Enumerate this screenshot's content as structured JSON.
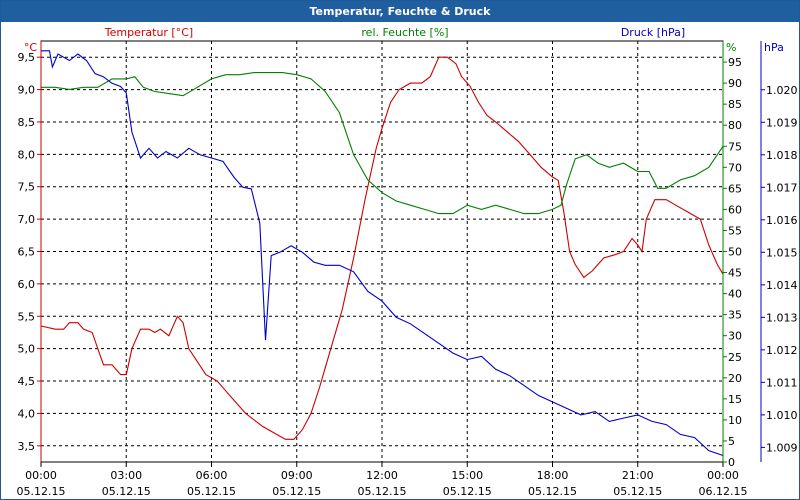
{
  "window": {
    "title": "Temperatur, Feuchte & Druck"
  },
  "chart_data": {
    "type": "line",
    "title": "Temperatur, Feuchte & Druck",
    "grid": true,
    "x": {
      "tick_times": [
        "00:00",
        "03:00",
        "06:00",
        "09:00",
        "12:00",
        "15:00",
        "18:00",
        "21:00",
        "00:00"
      ],
      "tick_dates": [
        "05.12.15",
        "05.12.15",
        "05.12.15",
        "05.12.15",
        "05.12.15",
        "05.12.15",
        "05.12.15",
        "05.12.15",
        "06.12.15"
      ],
      "range_hours": [
        0,
        24
      ]
    },
    "axes": {
      "temp": {
        "label": "Temperatur [°C]",
        "unit": "°C",
        "range": [
          3.25,
          9.75
        ],
        "ticks": [
          "3,5",
          "4,0",
          "4,5",
          "5,0",
          "5,5",
          "6,0",
          "6,5",
          "7,0",
          "7,5",
          "8,0",
          "8,5",
          "9,0",
          "9,5"
        ],
        "color": "#cc0000"
      },
      "hum": {
        "label": "rel. Feuchte [%]",
        "unit": "%",
        "range": [
          0,
          100
        ],
        "ticks": [
          "0",
          "5",
          "10",
          "15",
          "20",
          "25",
          "30",
          "35",
          "40",
          "45",
          "50",
          "55",
          "60",
          "65",
          "70",
          "75",
          "80",
          "85",
          "90",
          "95"
        ],
        "color": "#008000"
      },
      "press": {
        "label": "Druck [hPa]",
        "unit": "hPa",
        "range": [
          1008.55,
          1021.5
        ],
        "ticks": [
          "1.009",
          "1.010",
          "1.011",
          "1.012",
          "1.013",
          "1.014",
          "1.015",
          "1.016",
          "1.017",
          "1.018",
          "1.019",
          "1.020"
        ],
        "color": "#0000cc"
      }
    },
    "series": [
      {
        "name": "Temperatur [°C]",
        "axis": "temp",
        "color": "#cc0000",
        "points": [
          [
            0,
            5.35
          ],
          [
            0.5,
            5.3
          ],
          [
            0.8,
            5.3
          ],
          [
            1,
            5.4
          ],
          [
            1.3,
            5.4
          ],
          [
            1.5,
            5.3
          ],
          [
            1.8,
            5.25
          ],
          [
            2,
            5.0
          ],
          [
            2.2,
            4.75
          ],
          [
            2.5,
            4.75
          ],
          [
            2.8,
            4.6
          ],
          [
            3,
            4.6
          ],
          [
            3.2,
            5.0
          ],
          [
            3.5,
            5.3
          ],
          [
            3.8,
            5.3
          ],
          [
            4,
            5.25
          ],
          [
            4.2,
            5.3
          ],
          [
            4.5,
            5.2
          ],
          [
            4.8,
            5.5
          ],
          [
            5,
            5.4
          ],
          [
            5.2,
            5.0
          ],
          [
            5.5,
            4.8
          ],
          [
            5.8,
            4.6
          ],
          [
            6.2,
            4.5
          ],
          [
            6.5,
            4.35
          ],
          [
            6.8,
            4.2
          ],
          [
            7.2,
            4.0
          ],
          [
            7.5,
            3.9
          ],
          [
            7.8,
            3.8
          ],
          [
            8.2,
            3.7
          ],
          [
            8.6,
            3.6
          ],
          [
            8.9,
            3.6
          ],
          [
            9.2,
            3.75
          ],
          [
            9.5,
            4.0
          ],
          [
            9.8,
            4.4
          ],
          [
            10.2,
            5.0
          ],
          [
            10.6,
            5.6
          ],
          [
            11,
            6.4
          ],
          [
            11.4,
            7.3
          ],
          [
            11.8,
            8.1
          ],
          [
            12,
            8.4
          ],
          [
            12.3,
            8.8
          ],
          [
            12.6,
            9.0
          ],
          [
            13,
            9.1
          ],
          [
            13.4,
            9.1
          ],
          [
            13.7,
            9.2
          ],
          [
            14,
            9.5
          ],
          [
            14.3,
            9.5
          ],
          [
            14.6,
            9.4
          ],
          [
            14.8,
            9.2
          ],
          [
            15.1,
            9.05
          ],
          [
            15.4,
            8.8
          ],
          [
            15.7,
            8.6
          ],
          [
            16,
            8.5
          ],
          [
            16.4,
            8.35
          ],
          [
            16.8,
            8.2
          ],
          [
            17.2,
            8.0
          ],
          [
            17.6,
            7.8
          ],
          [
            18,
            7.65
          ],
          [
            18.2,
            7.6
          ],
          [
            18.4,
            7.1
          ],
          [
            18.6,
            6.5
          ],
          [
            18.8,
            6.3
          ],
          [
            19.1,
            6.1
          ],
          [
            19.4,
            6.2
          ],
          [
            19.8,
            6.4
          ],
          [
            20.2,
            6.45
          ],
          [
            20.5,
            6.5
          ],
          [
            20.8,
            6.7
          ],
          [
            21,
            6.6
          ],
          [
            21.15,
            6.5
          ],
          [
            21.3,
            7.0
          ],
          [
            21.6,
            7.3
          ],
          [
            22,
            7.3
          ],
          [
            22.4,
            7.2
          ],
          [
            22.8,
            7.1
          ],
          [
            23.2,
            7.0
          ],
          [
            23.5,
            6.6
          ],
          [
            23.8,
            6.3
          ],
          [
            24,
            6.15
          ]
        ]
      },
      {
        "name": "rel. Feuchte [%]",
        "axis": "hum",
        "color": "#008000",
        "points": [
          [
            0,
            89
          ],
          [
            0.5,
            89
          ],
          [
            1,
            88.5
          ],
          [
            1.5,
            89
          ],
          [
            2,
            89
          ],
          [
            2.5,
            91
          ],
          [
            3,
            91
          ],
          [
            3.3,
            91.5
          ],
          [
            3.6,
            89
          ],
          [
            4,
            88
          ],
          [
            4.5,
            87.5
          ],
          [
            5,
            87
          ],
          [
            5.5,
            89
          ],
          [
            6,
            91
          ],
          [
            6.5,
            92
          ],
          [
            7,
            92
          ],
          [
            7.5,
            92.5
          ],
          [
            8,
            92.5
          ],
          [
            8.5,
            92.5
          ],
          [
            9,
            92
          ],
          [
            9.5,
            91
          ],
          [
            10,
            88
          ],
          [
            10.5,
            83
          ],
          [
            11,
            73
          ],
          [
            11.5,
            67
          ],
          [
            12,
            64
          ],
          [
            12.5,
            62
          ],
          [
            13,
            61
          ],
          [
            13.5,
            60
          ],
          [
            14,
            59
          ],
          [
            14.5,
            59
          ],
          [
            15,
            61
          ],
          [
            15.5,
            60
          ],
          [
            16,
            61
          ],
          [
            16.5,
            60
          ],
          [
            17,
            59
          ],
          [
            17.5,
            59
          ],
          [
            18,
            60
          ],
          [
            18.3,
            61
          ],
          [
            18.5,
            66
          ],
          [
            18.8,
            72
          ],
          [
            19.2,
            73
          ],
          [
            19.6,
            71
          ],
          [
            20,
            70
          ],
          [
            20.5,
            71
          ],
          [
            21,
            69
          ],
          [
            21.4,
            69
          ],
          [
            21.7,
            65
          ],
          [
            22,
            65
          ],
          [
            22.5,
            67
          ],
          [
            23,
            68
          ],
          [
            23.5,
            70
          ],
          [
            24,
            75
          ]
        ]
      },
      {
        "name": "Druck [hPa]",
        "axis": "press",
        "color": "#0000cc",
        "points": [
          [
            0,
            1021.2
          ],
          [
            0.3,
            1021.2
          ],
          [
            0.4,
            1020.7
          ],
          [
            0.6,
            1021.1
          ],
          [
            1,
            1020.9
          ],
          [
            1.3,
            1021.1
          ],
          [
            1.6,
            1020.9
          ],
          [
            1.9,
            1020.5
          ],
          [
            2.2,
            1020.4
          ],
          [
            2.5,
            1020.2
          ],
          [
            2.8,
            1020.1
          ],
          [
            3,
            1019.9
          ],
          [
            3.2,
            1018.7
          ],
          [
            3.5,
            1017.9
          ],
          [
            3.8,
            1018.2
          ],
          [
            4.1,
            1017.9
          ],
          [
            4.4,
            1018.1
          ],
          [
            4.8,
            1017.9
          ],
          [
            5.2,
            1018.2
          ],
          [
            5.6,
            1018.0
          ],
          [
            6,
            1017.9
          ],
          [
            6.4,
            1017.8
          ],
          [
            6.8,
            1017.3
          ],
          [
            7.1,
            1017.0
          ],
          [
            7.4,
            1016.95
          ],
          [
            7.7,
            1015.9
          ],
          [
            7.9,
            1012.3
          ],
          [
            8.1,
            1014.9
          ],
          [
            8.4,
            1015.0
          ],
          [
            8.8,
            1015.2
          ],
          [
            9.2,
            1015.0
          ],
          [
            9.6,
            1014.7
          ],
          [
            10,
            1014.6
          ],
          [
            10.5,
            1014.6
          ],
          [
            11,
            1014.4
          ],
          [
            11.5,
            1013.8
          ],
          [
            12,
            1013.5
          ],
          [
            12.5,
            1013.0
          ],
          [
            13,
            1012.8
          ],
          [
            13.5,
            1012.5
          ],
          [
            14,
            1012.2
          ],
          [
            14.5,
            1011.9
          ],
          [
            15,
            1011.7
          ],
          [
            15.5,
            1011.8
          ],
          [
            16,
            1011.4
          ],
          [
            16.5,
            1011.2
          ],
          [
            17,
            1010.9
          ],
          [
            17.5,
            1010.6
          ],
          [
            18,
            1010.4
          ],
          [
            18.5,
            1010.2
          ],
          [
            19,
            1010.0
          ],
          [
            19.5,
            1010.1
          ],
          [
            20,
            1009.8
          ],
          [
            20.5,
            1009.9
          ],
          [
            21,
            1010.0
          ],
          [
            21.5,
            1009.8
          ],
          [
            22,
            1009.7
          ],
          [
            22.5,
            1009.4
          ],
          [
            23,
            1009.3
          ],
          [
            23.5,
            1008.9
          ],
          [
            24,
            1008.75
          ]
        ]
      }
    ]
  }
}
